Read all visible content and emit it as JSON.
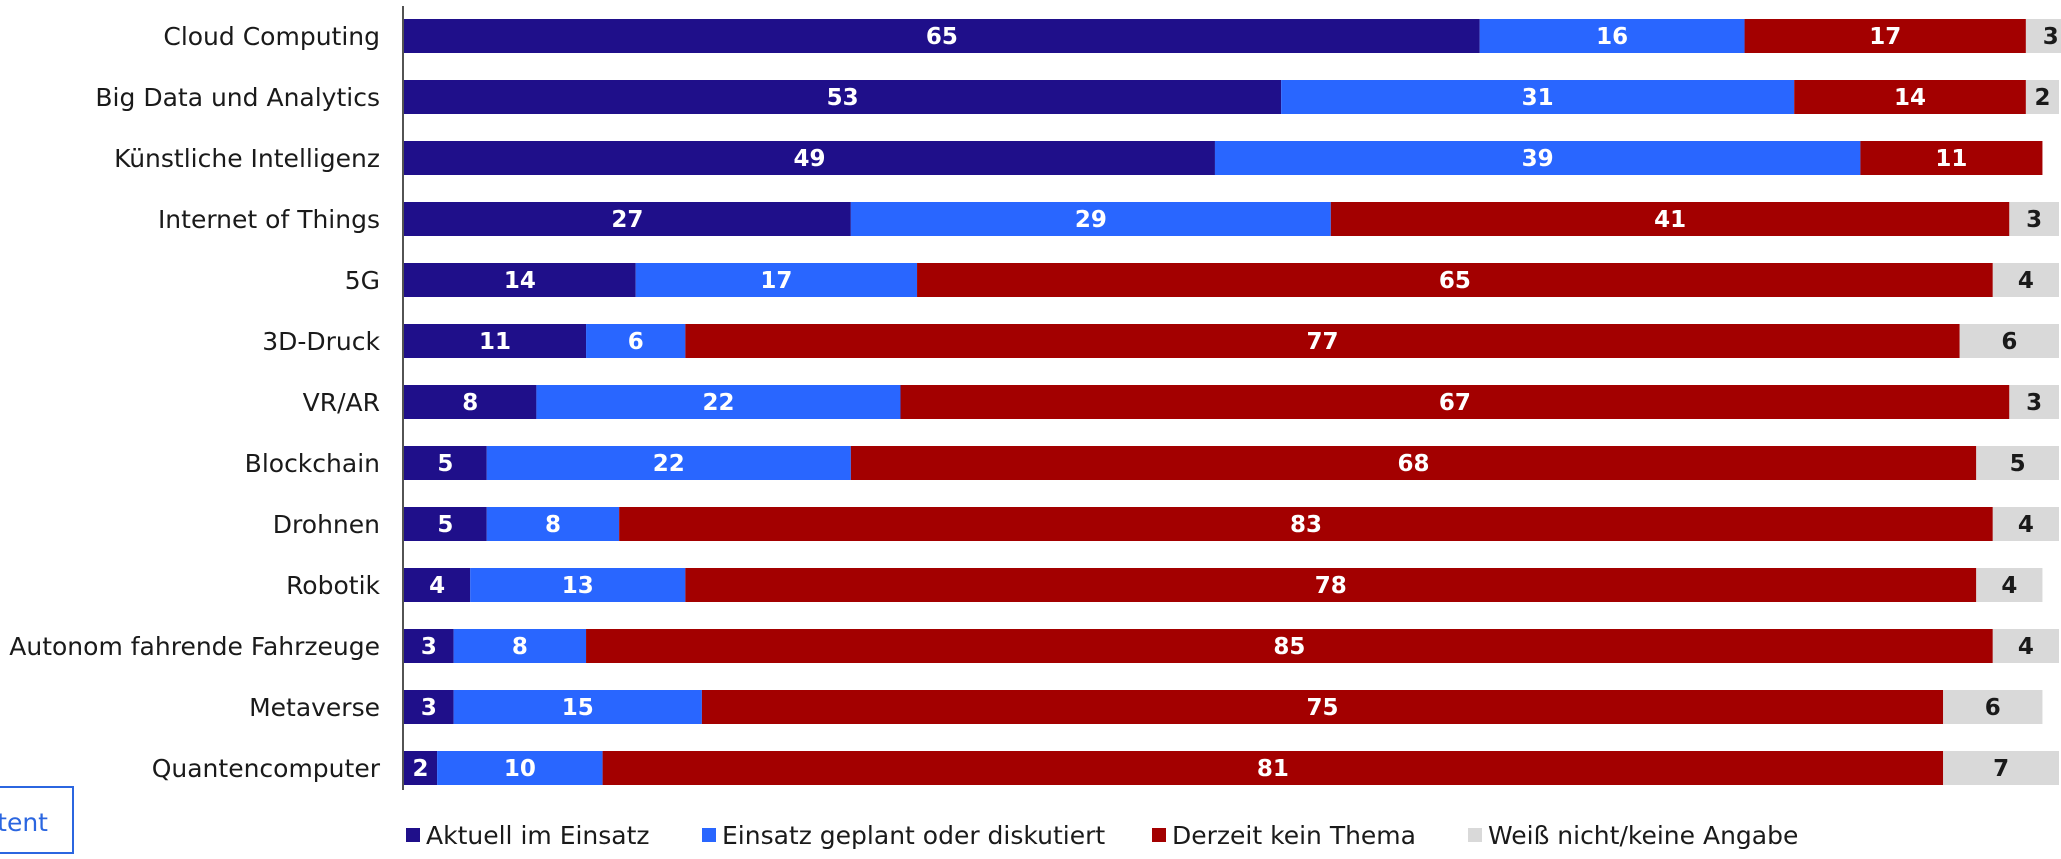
{
  "chart_data": {
    "type": "bar",
    "orientation": "horizontal",
    "stacked": true,
    "categories": [
      "Cloud Computing",
      "Big Data und Analytics",
      "Künstliche Intelligenz",
      "Internet of Things",
      "5G",
      "3D-Druck",
      "VR/AR",
      "Blockchain",
      "Drohnen",
      "Robotik",
      "Autonom fahrende Fahrzeuge",
      "Metaverse",
      "Quantencomputer"
    ],
    "series": [
      {
        "name": "Aktuell im Einsatz",
        "color": "#1f0f8a",
        "label_color": "#ffffff",
        "values": [
          65,
          53,
          49,
          27,
          14,
          11,
          8,
          5,
          5,
          4,
          3,
          3,
          2
        ]
      },
      {
        "name": "Einsatz geplant oder diskutiert",
        "color": "#2966ff",
        "label_color": "#ffffff",
        "values": [
          16,
          31,
          39,
          29,
          17,
          6,
          22,
          22,
          8,
          13,
          8,
          15,
          10
        ]
      },
      {
        "name": "Derzeit kein Thema",
        "color": "#a30000",
        "label_color": "#ffffff",
        "values": [
          17,
          14,
          11,
          41,
          65,
          77,
          67,
          68,
          83,
          78,
          85,
          75,
          81
        ]
      },
      {
        "name": "Weiß nicht/keine Angabe",
        "color": "#d9d9d9",
        "label_color": "#1a1a1a",
        "values": [
          3,
          2,
          null,
          3,
          4,
          6,
          3,
          5,
          4,
          4,
          4,
          6,
          7
        ]
      }
    ],
    "xlim": [
      0,
      100
    ],
    "grid": false,
    "legend_position": "bottom"
  },
  "fragment_text": "tent"
}
